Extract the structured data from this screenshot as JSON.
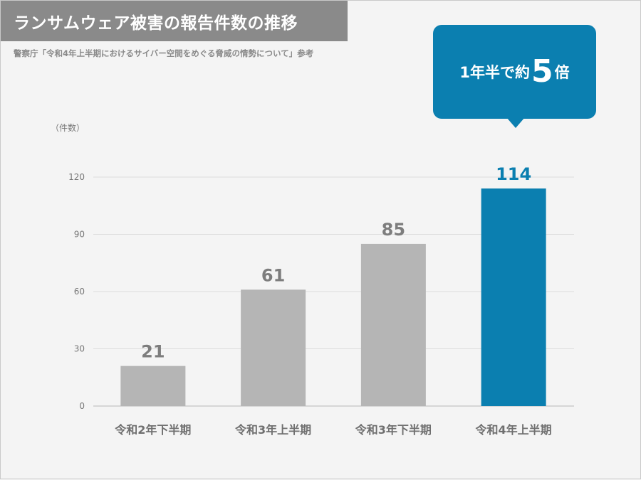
{
  "header": {
    "title": "ランサムウェア被害の報告件数の推移",
    "source": "警察庁「令和4年上半期におけるサイバー空間をめぐる脅威の情勢について」参考"
  },
  "callout": {
    "prefix": "1年半で約",
    "number": "5",
    "suffix": "倍"
  },
  "colors": {
    "bar_default": "#b5b5b5",
    "bar_highlight": "#0b7fb0",
    "label_default": "#7d7d7d",
    "label_highlight": "#0b7fb0",
    "grid": "#dcdcdc"
  },
  "chart_data": {
    "type": "bar",
    "title": "ランサムウェア被害の報告件数の推移",
    "ylabel": "（件数）",
    "xlabel": "",
    "categories": [
      "令和2年下半期",
      "令和3年上半期",
      "令和3年下半期",
      "令和4年上半期"
    ],
    "values": [
      21,
      61,
      85,
      114
    ],
    "highlight_index": 3,
    "ylim": [
      0,
      120
    ],
    "yticks": [
      0,
      30,
      60,
      90,
      120
    ],
    "grid": true,
    "data_labels": true
  }
}
